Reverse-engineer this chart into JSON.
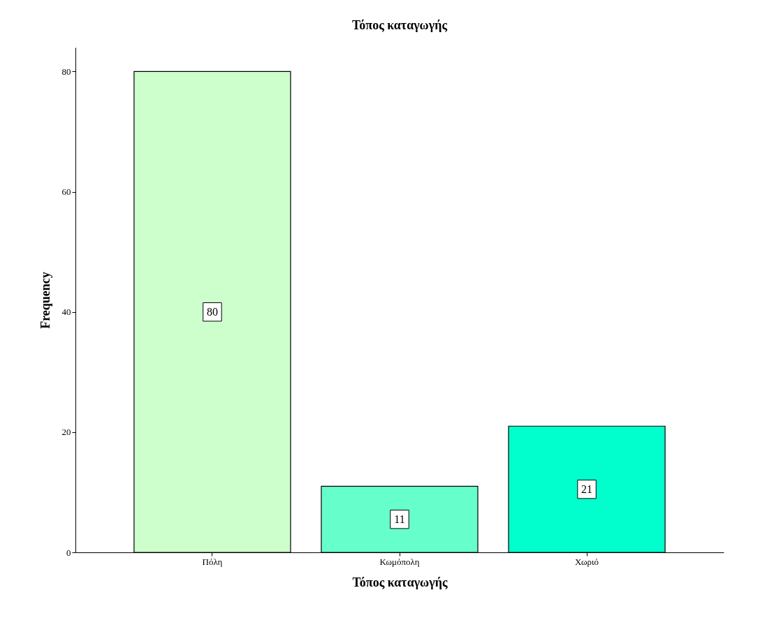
{
  "chart_data": {
    "type": "bar",
    "title": "Τόπος καταγωγής",
    "xlabel": "Τόπος καταγωγής",
    "ylabel": "Frequency",
    "categories": [
      "Πόλη",
      "Κωμόπολη",
      "Χωριό"
    ],
    "values": [
      80,
      11,
      21
    ],
    "colors": [
      "#ccffcc",
      "#66ffcc",
      "#00ffcc"
    ],
    "ylim": [
      0,
      84
    ],
    "yticks": [
      0,
      20,
      40,
      60,
      80
    ],
    "grid": false,
    "data_labels": true
  }
}
